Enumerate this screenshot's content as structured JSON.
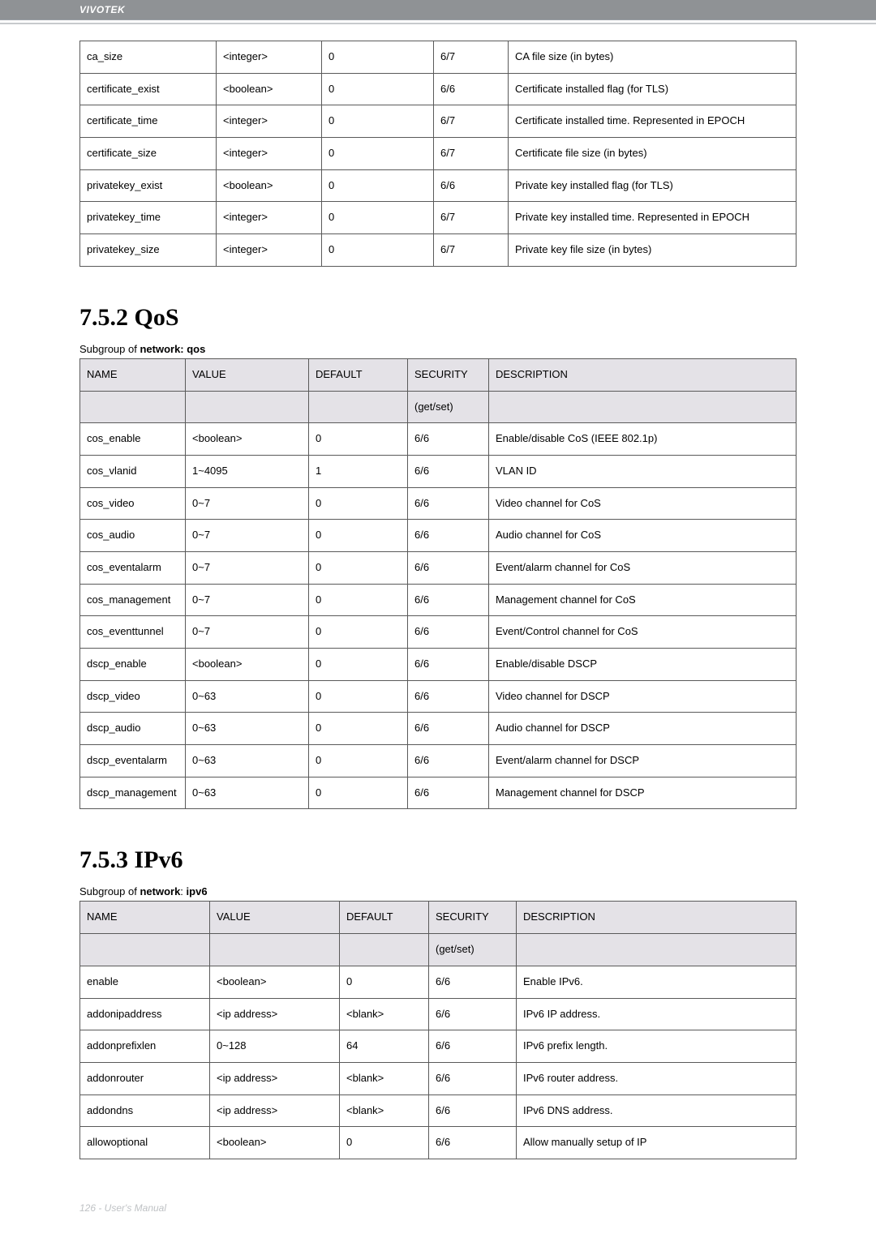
{
  "brand": "VIVOTEK",
  "footer": "126 - User's Manual",
  "table1": {
    "rows": [
      [
        "ca_size",
        "<integer>",
        "0",
        "6/7",
        "CA file size (in bytes)"
      ],
      [
        "certificate_exist",
        "<boolean>",
        "0",
        "6/6",
        "Certificate installed flag (for TLS)"
      ],
      [
        "certificate_time",
        "<integer>",
        "0",
        "6/7",
        "Certificate installed time. Represented in EPOCH"
      ],
      [
        "certificate_size",
        "<integer>",
        "0",
        "6/7",
        "Certificate file size (in bytes)"
      ],
      [
        "privatekey_exist",
        "<boolean>",
        "0",
        "6/6",
        "Private key installed flag (for TLS)"
      ],
      [
        "privatekey_time",
        "<integer>",
        "0",
        "6/7",
        "Private key installed time. Represented in EPOCH"
      ],
      [
        "privatekey_size",
        "<integer>",
        "0",
        "6/7",
        "Private key file size (in bytes)"
      ]
    ]
  },
  "section2": {
    "title": "7.5.2   QoS",
    "subgroup_prefix": "Subgroup of ",
    "subgroup_bold": "network: qos",
    "headers": [
      "NAME",
      "VALUE",
      "DEFAULT",
      "SECURITY (get/set)",
      "DESCRIPTION"
    ],
    "rows": [
      [
        "cos_enable",
        "<boolean>",
        "0",
        "6/6",
        "Enable/disable CoS (IEEE 802.1p)"
      ],
      [
        "cos_vlanid",
        "1~4095",
        "1",
        "6/6",
        "VLAN ID"
      ],
      [
        "cos_video",
        "0~7",
        "0",
        "6/6",
        "Video channel for CoS"
      ],
      [
        "cos_audio",
        "0~7",
        "0",
        "6/6",
        "Audio channel for CoS"
      ],
      [
        "cos_eventalarm",
        "0~7",
        "0",
        "6/6",
        "Event/alarm channel for CoS"
      ],
      [
        "cos_management",
        "0~7",
        "0",
        "6/6",
        "Management channel for CoS"
      ],
      [
        "cos_eventtunnel",
        "0~7",
        "0",
        "6/6",
        "Event/Control channel for CoS"
      ],
      [
        "dscp_enable",
        "<boolean>",
        "0",
        "6/6",
        "Enable/disable DSCP"
      ],
      [
        "dscp_video",
        "0~63",
        "0",
        "6/6",
        "Video channel for DSCP"
      ],
      [
        "dscp_audio",
        "0~63",
        "0",
        "6/6",
        "Audio channel for DSCP"
      ],
      [
        "dscp_eventalarm",
        "0~63",
        "0",
        "6/6",
        "Event/alarm channel for DSCP"
      ],
      [
        "dscp_management",
        "0~63",
        "0",
        "6/6",
        "Management channel for DSCP"
      ]
    ]
  },
  "section3": {
    "title": "7.5.3   IPv6",
    "subgroup_prefix": "Subgroup of ",
    "subgroup_bold": "network",
    "subgroup_after": ": ",
    "subgroup_bold2": "ipv6",
    "headers": [
      "NAME",
      "VALUE",
      "DEFAULT",
      "SECURITY (get/set)",
      "DESCRIPTION"
    ],
    "rows": [
      [
        "enable",
        "<boolean>",
        "0",
        "6/6",
        "Enable IPv6."
      ],
      [
        "addonipaddress",
        "<ip address>",
        "<blank>",
        "6/6",
        "IPv6 IP address."
      ],
      [
        "addonprefixlen",
        "0~128",
        "64",
        "6/6",
        "IPv6 prefix length."
      ],
      [
        "addonrouter",
        "<ip address>",
        "<blank>",
        "6/6",
        "IPv6 router address."
      ],
      [
        "addondns",
        "<ip address>",
        "<blank>",
        "6/6",
        "IPv6 DNS address."
      ],
      [
        "allowoptional",
        "<boolean>",
        "0",
        "6/6",
        "Allow manually setup of IP"
      ]
    ]
  }
}
